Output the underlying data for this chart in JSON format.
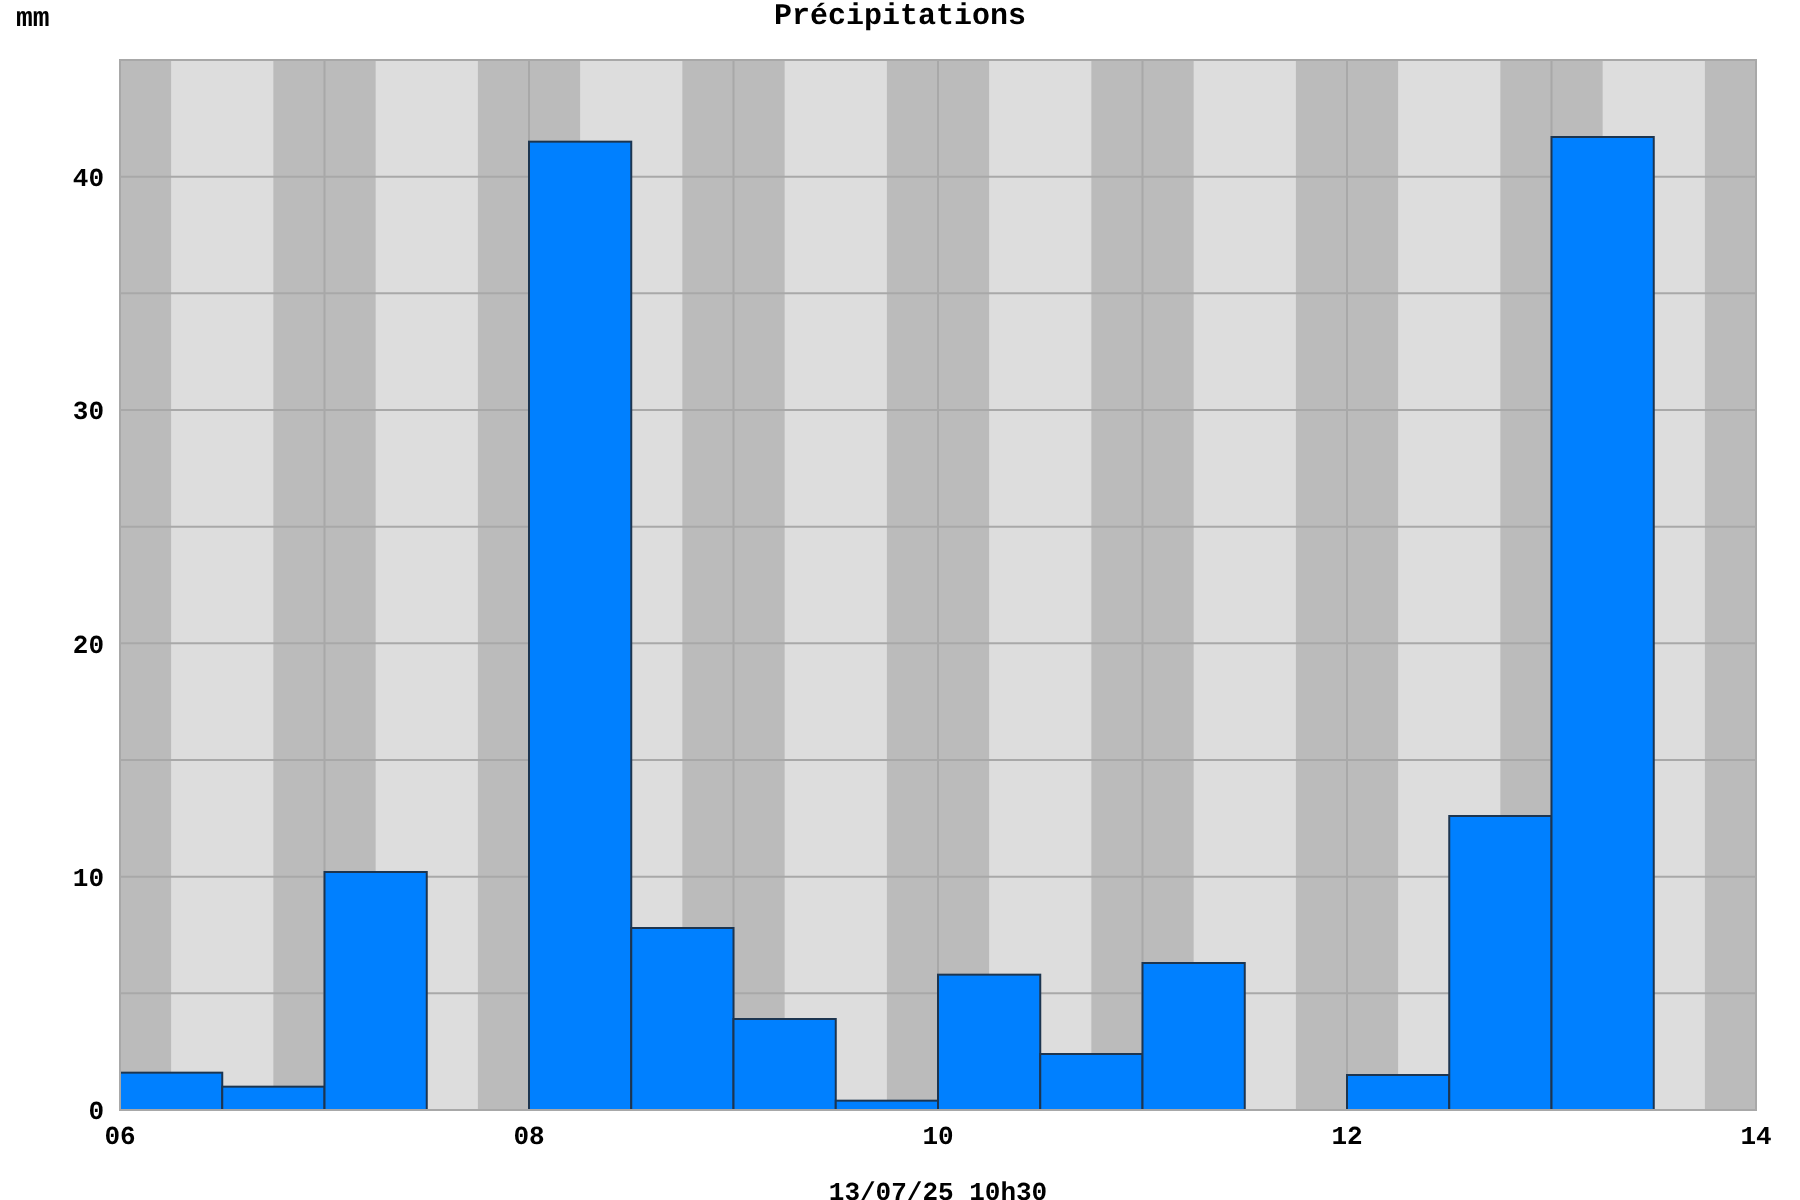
{
  "chart_data": {
    "type": "histogram",
    "title": "Précipitations",
    "ylabel": "mm",
    "xlabel": "13/07/25 10h30",
    "bins": [
      6,
      6.5,
      7,
      7.5,
      8,
      8.5,
      9,
      9.5,
      10,
      10.5,
      11,
      11.5,
      12,
      12.5,
      13,
      13.5
    ],
    "values": [
      1.6,
      1.0,
      10.2,
      0,
      41.5,
      7.8,
      3.9,
      0.4,
      5.8,
      2.4,
      6.3,
      0,
      1.5,
      12.6,
      41.7
    ],
    "color": "#0080ff",
    "xlim": [
      6,
      14
    ],
    "xticks": [
      {
        "value": 6,
        "label": "06"
      },
      {
        "value": 7,
        "label": null
      },
      {
        "value": 8,
        "label": "08"
      },
      {
        "value": 9,
        "label": null
      },
      {
        "value": 10,
        "label": "10"
      },
      {
        "value": 11,
        "label": null
      },
      {
        "value": 12,
        "label": "12"
      },
      {
        "value": 13,
        "label": null
      },
      {
        "value": 14,
        "label": "14"
      }
    ],
    "ylim": [
      0,
      45
    ],
    "yticks": [
      0,
      {
        "value": 5,
        "label": null
      },
      10,
      {
        "value": 15,
        "label": null
      },
      20,
      {
        "value": 25,
        "label": null
      },
      30,
      {
        "value": 35,
        "label": null
      },
      40
    ],
    "grid": true,
    "bands": [
      {
        "axis": "x",
        "from": 6,
        "to": 6.25,
        "color": "#bbbbbb"
      },
      {
        "axis": "x",
        "from": 6.75,
        "to": 7.25,
        "color": "#bbbbbb"
      },
      {
        "axis": "x",
        "from": 7.75,
        "to": 8.25,
        "color": "#bbbbbb"
      },
      {
        "axis": "x",
        "from": 8.75,
        "to": 9.25,
        "color": "#bbbbbb"
      },
      {
        "axis": "x",
        "from": 9.75,
        "to": 10.25,
        "color": "#bbbbbb"
      },
      {
        "axis": "x",
        "from": 10.75,
        "to": 11.25,
        "color": "#bbbbbb"
      },
      {
        "axis": "x",
        "from": 11.75,
        "to": 12.25,
        "color": "#bbbbbb"
      },
      {
        "axis": "x",
        "from": 12.75,
        "to": 13.25,
        "color": "#bbbbbb"
      },
      {
        "axis": "x",
        "from": 13.75,
        "to": 14,
        "color": "#bbbbbb"
      }
    ]
  }
}
